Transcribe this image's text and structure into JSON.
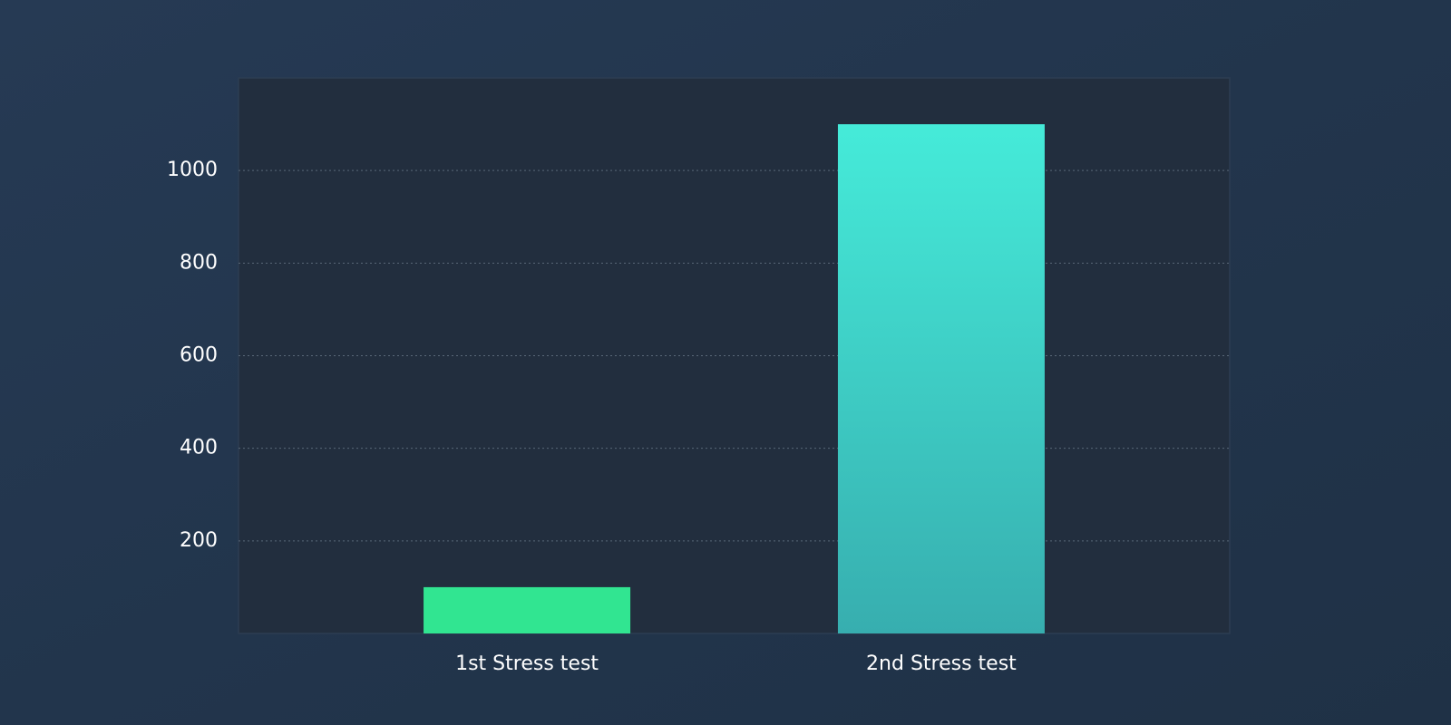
{
  "chart_data": {
    "type": "bar",
    "categories": [
      "1st Stress test",
      "2nd Stress test"
    ],
    "values": [
      100,
      1100
    ],
    "colors": [
      "#31e591",
      "#45ebd9"
    ],
    "ylim": [
      0,
      1200
    ],
    "yticks": [
      200,
      400,
      600,
      800,
      1000
    ],
    "grid": true
  }
}
